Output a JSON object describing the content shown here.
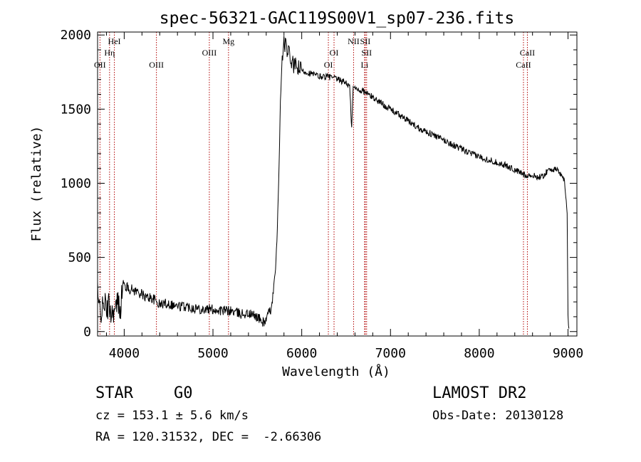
{
  "chart_data": {
    "type": "line",
    "title": "spec-56321-GAC119S00V1_sp07-236.fits",
    "xlabel": "Wavelength (Å)",
    "ylabel": "Flux (relative)",
    "xlim": [
      3700,
      9100
    ],
    "ylim": [
      -30,
      2020
    ],
    "xticks": [
      4000,
      5000,
      6000,
      7000,
      8000,
      9000
    ],
    "yticks": [
      0,
      500,
      1000,
      1500,
      2000
    ],
    "grid": false,
    "series": [
      {
        "x": [
          3700,
          3710,
          3720,
          3740,
          3760,
          3780,
          3800,
          3820,
          3840,
          3860,
          3880,
          3900,
          3920,
          3940,
          3960,
          3980,
          4000,
          4050,
          4100,
          4150,
          4200,
          4250,
          4300,
          4350,
          4400,
          4450,
          4500,
          4600,
          4700,
          4800,
          4900,
          5000,
          5100,
          5200,
          5300,
          5400,
          5500,
          5560,
          5600,
          5650,
          5680,
          5700,
          5720,
          5740,
          5760,
          5780,
          5800,
          5820,
          5850,
          5880,
          5900,
          5950,
          6000,
          6100,
          6200,
          6300,
          6400,
          6500,
          6540,
          6563,
          6580,
          6600,
          6700,
          6800,
          6900,
          7000,
          7100,
          7200,
          7300,
          7400,
          7500,
          7600,
          7700,
          7800,
          7900,
          8000,
          8100,
          8200,
          8300,
          8400,
          8500,
          8600,
          8700,
          8800,
          8900,
          8960,
          8990,
          9000,
          9010
        ],
        "y": [
          320,
          140,
          170,
          140,
          150,
          210,
          120,
          180,
          160,
          120,
          150,
          120,
          200,
          180,
          170,
          300,
          310,
          290,
          280,
          270,
          250,
          230,
          230,
          210,
          180,
          190,
          190,
          170,
          170,
          160,
          150,
          150,
          140,
          140,
          120,
          120,
          100,
          60,
          80,
          150,
          260,
          380,
          600,
          1000,
          1550,
          1850,
          1950,
          1920,
          1880,
          1830,
          1800,
          1780,
          1760,
          1740,
          1720,
          1720,
          1700,
          1680,
          1650,
          1370,
          1650,
          1640,
          1620,
          1580,
          1540,
          1500,
          1460,
          1420,
          1380,
          1350,
          1320,
          1290,
          1260,
          1230,
          1200,
          1180,
          1160,
          1140,
          1120,
          1090,
          1060,
          1050,
          1040,
          1100,
          1080,
          1020,
          800,
          100,
          20
        ]
      }
    ],
    "lines": [
      {
        "label": "OII",
        "x": 3727,
        "row": 3
      },
      {
        "label": "Hη",
        "x": 3835,
        "row": 2
      },
      {
        "label": "HeI",
        "x": 3889,
        "row": 1
      },
      {
        "label": "OIII",
        "x": 4363,
        "row": 3
      },
      {
        "label": "OIII",
        "x": 4959,
        "row": 2
      },
      {
        "label": "Mg",
        "x": 5175,
        "row": 1
      },
      {
        "label": "OI",
        "x": 6300,
        "row": 3
      },
      {
        "label": "OI",
        "x": 6364,
        "row": 2
      },
      {
        "label": "NII",
        "x": 6584,
        "row": 1
      },
      {
        "label": "SII",
        "x": 6716,
        "row": 1
      },
      {
        "label": "SII",
        "x": 6731,
        "row": 2
      },
      {
        "label": "Li",
        "x": 6708,
        "row": 3
      },
      {
        "label": "CaII",
        "x": 8498,
        "row": 3
      },
      {
        "label": "CaII",
        "x": 8542,
        "row": 2
      }
    ]
  },
  "info": {
    "class_label": "STAR",
    "subclass": "G0",
    "survey": "LAMOST DR2",
    "cz": "cz = 153.1 ± 5.6 km/s",
    "obs_date": "Obs-Date: 20130128",
    "coords": "RA = 120.31532, DEC =  -2.66306"
  },
  "colors": {
    "line": "#000000",
    "marker": "#b00000",
    "background": "#ffffff"
  }
}
